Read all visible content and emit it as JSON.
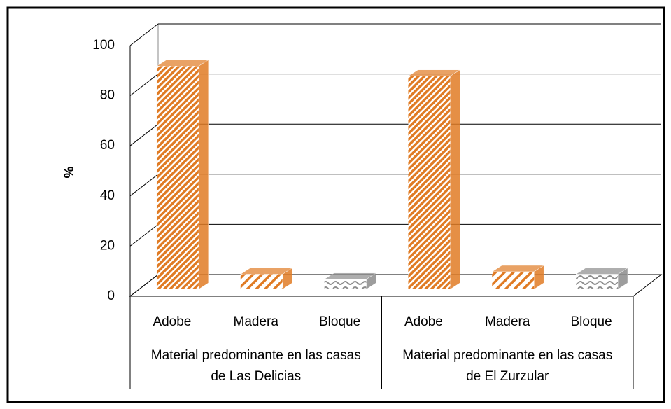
{
  "chart_data": {
    "type": "bar3d",
    "ylabel": "%",
    "groups": [
      {
        "label": "Material  predominante en las casas de Las Delicias",
        "categories": [
          "Adobe",
          "Madera",
          "Bloque"
        ],
        "values": [
          89,
          6,
          4
        ]
      },
      {
        "label": "Material predominante en las casas de El Zurzular",
        "categories": [
          "Adobe",
          "Madera",
          "Bloque"
        ],
        "values": [
          85,
          7,
          6
        ]
      }
    ],
    "colors": [
      "#e07b24",
      "#e07b24",
      "#8c8c8c"
    ],
    "ylim": [
      0,
      100
    ],
    "yticks": [
      0,
      20,
      40,
      60,
      80,
      100
    ],
    "grid": true
  }
}
